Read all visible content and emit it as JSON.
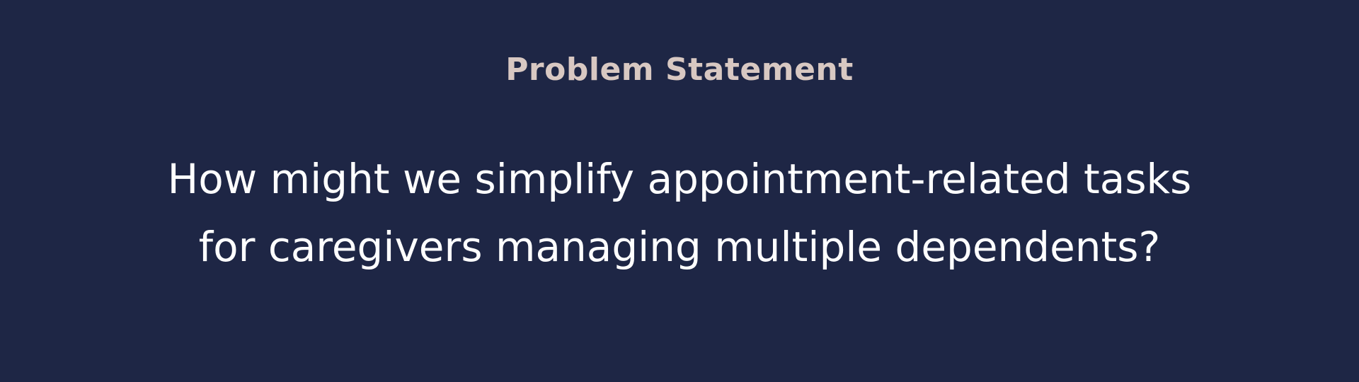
{
  "slide": {
    "heading": "Problem Statement",
    "statement_lines": [
      "How might we simplify appointment-related tasks",
      "for caregivers managing multiple dependents?"
    ]
  },
  "colors": {
    "background": "#1e2645",
    "heading": "#d8c8c2",
    "statement": "#ffffff"
  }
}
